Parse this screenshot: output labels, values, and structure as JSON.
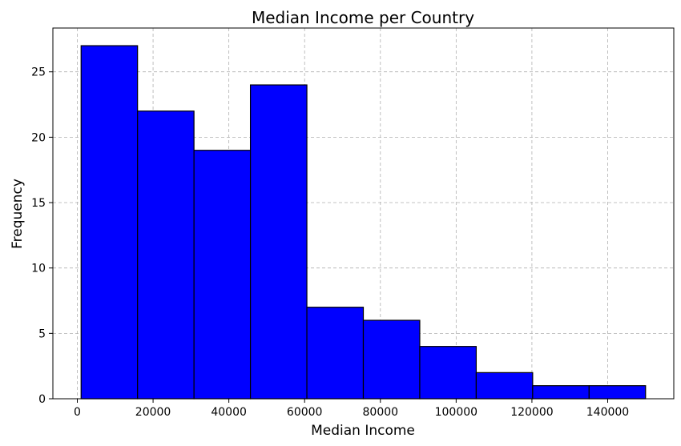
{
  "chart_data": {
    "type": "bar",
    "title": "Median Income per Country",
    "xlabel": "Median Income",
    "ylabel": "Frequency",
    "bins": [
      {
        "start": 1000,
        "end": 15900,
        "count": 27
      },
      {
        "start": 15900,
        "end": 30800,
        "count": 22
      },
      {
        "start": 30800,
        "end": 45700,
        "count": 19
      },
      {
        "start": 45700,
        "end": 60600,
        "count": 24
      },
      {
        "start": 60600,
        "end": 75500,
        "count": 7
      },
      {
        "start": 75500,
        "end": 90400,
        "count": 6
      },
      {
        "start": 90400,
        "end": 105300,
        "count": 4
      },
      {
        "start": 105300,
        "end": 120200,
        "count": 2
      },
      {
        "start": 120200,
        "end": 135100,
        "count": 1
      },
      {
        "start": 135100,
        "end": 150000,
        "count": 1
      }
    ],
    "xlim": [
      -6450,
      157450
    ],
    "ylim": [
      0,
      28.35
    ],
    "xticks": [
      0,
      20000,
      40000,
      60000,
      80000,
      100000,
      120000,
      140000
    ],
    "yticks": [
      0,
      5,
      10,
      15,
      20,
      25
    ],
    "grid": true,
    "bar_color": "#0000ff",
    "edge_color": "#000000",
    "grid_color": "#b0b0b0"
  }
}
